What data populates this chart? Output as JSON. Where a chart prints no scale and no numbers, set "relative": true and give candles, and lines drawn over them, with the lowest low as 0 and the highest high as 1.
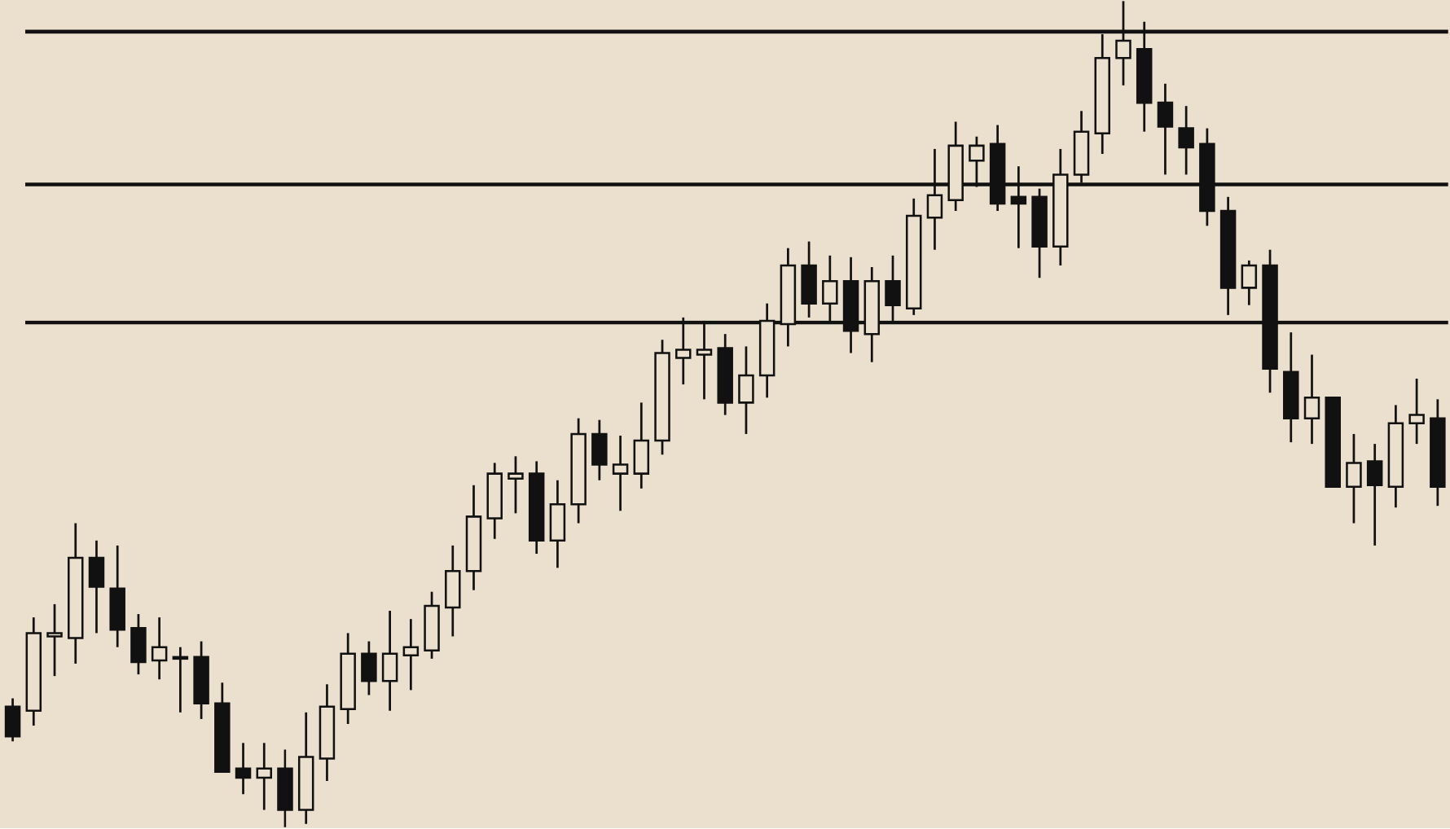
{
  "chart_data": {
    "type": "candlestick",
    "relative": true,
    "color": "#111111",
    "categories": [
      null,
      null,
      null,
      null,
      null,
      null,
      null,
      null,
      null,
      null,
      null,
      null,
      null,
      null,
      null,
      null,
      null,
      null,
      null,
      null,
      null,
      null,
      null,
      null,
      null,
      null,
      null,
      null,
      null,
      null,
      null,
      null,
      null,
      null,
      null,
      null,
      null,
      null,
      null,
      null,
      null,
      null,
      null,
      null,
      null,
      null,
      null,
      null,
      null,
      null,
      null,
      null,
      null,
      null,
      null,
      null,
      null,
      null,
      null,
      null,
      null,
      null,
      null,
      null,
      null,
      null,
      null,
      null,
      null
    ],
    "ohlc": [
      [
        0.146,
        0.156,
        0.104,
        0.11
      ],
      [
        0.141,
        0.254,
        0.123,
        0.235
      ],
      [
        0.231,
        0.27,
        0.183,
        0.235
      ],
      [
        0.229,
        0.368,
        0.198,
        0.326
      ],
      [
        0.326,
        0.347,
        0.235,
        0.291
      ],
      [
        0.289,
        0.341,
        0.218,
        0.239
      ],
      [
        0.241,
        0.258,
        0.185,
        0.2
      ],
      [
        0.202,
        0.254,
        0.179,
        0.218
      ],
      [
        0.204,
        0.218,
        0.139,
        0.206
      ],
      [
        0.206,
        0.225,
        0.131,
        0.15
      ],
      [
        0.15,
        0.175,
        0.067,
        0.067
      ],
      [
        0.071,
        0.102,
        0.04,
        0.06
      ],
      [
        0.06,
        0.102,
        0.021,
        0.071
      ],
      [
        0.071,
        0.094,
        0.0,
        0.021
      ],
      [
        0.021,
        0.139,
        0.004,
        0.085
      ],
      [
        0.083,
        0.173,
        0.056,
        0.146
      ],
      [
        0.143,
        0.235,
        0.125,
        0.21
      ],
      [
        0.21,
        0.225,
        0.16,
        0.177
      ],
      [
        0.177,
        0.262,
        0.141,
        0.21
      ],
      [
        0.208,
        0.252,
        0.166,
        0.218
      ],
      [
        0.214,
        0.285,
        0.204,
        0.268
      ],
      [
        0.266,
        0.341,
        0.231,
        0.31
      ],
      [
        0.31,
        0.414,
        0.287,
        0.376
      ],
      [
        0.374,
        0.441,
        0.349,
        0.428
      ],
      [
        0.422,
        0.449,
        0.38,
        0.428
      ],
      [
        0.428,
        0.443,
        0.331,
        0.347
      ],
      [
        0.347,
        0.42,
        0.314,
        0.391
      ],
      [
        0.391,
        0.495,
        0.368,
        0.476
      ],
      [
        0.476,
        0.493,
        0.42,
        0.439
      ],
      [
        0.428,
        0.474,
        0.383,
        0.439
      ],
      [
        0.428,
        0.514,
        0.41,
        0.468
      ],
      [
        0.468,
        0.59,
        0.451,
        0.574
      ],
      [
        0.568,
        0.617,
        0.536,
        0.578
      ],
      [
        0.572,
        0.613,
        0.518,
        0.578
      ],
      [
        0.58,
        0.597,
        0.499,
        0.514
      ],
      [
        0.514,
        0.582,
        0.476,
        0.547
      ],
      [
        0.547,
        0.634,
        0.52,
        0.613
      ],
      [
        0.609,
        0.701,
        0.582,
        0.68
      ],
      [
        0.68,
        0.709,
        0.617,
        0.634
      ],
      [
        0.634,
        0.692,
        0.609,
        0.661
      ],
      [
        0.661,
        0.69,
        0.574,
        0.601
      ],
      [
        0.597,
        0.678,
        0.563,
        0.661
      ],
      [
        0.661,
        0.692,
        0.613,
        0.632
      ],
      [
        0.628,
        0.761,
        0.62,
        0.74
      ],
      [
        0.738,
        0.821,
        0.699,
        0.765
      ],
      [
        0.759,
        0.854,
        0.746,
        0.825
      ],
      [
        0.807,
        0.836,
        0.775,
        0.825
      ],
      [
        0.827,
        0.85,
        0.746,
        0.755
      ],
      [
        0.763,
        0.8,
        0.701,
        0.755
      ],
      [
        0.763,
        0.773,
        0.665,
        0.703
      ],
      [
        0.703,
        0.821,
        0.68,
        0.79
      ],
      [
        0.79,
        0.867,
        0.78,
        0.842
      ],
      [
        0.84,
        0.96,
        0.815,
        0.931
      ],
      [
        0.931,
        1.0,
        0.898,
        0.952
      ],
      [
        0.942,
        0.975,
        0.842,
        0.877
      ],
      [
        0.877,
        0.9,
        0.79,
        0.848
      ],
      [
        0.846,
        0.873,
        0.79,
        0.823
      ],
      [
        0.827,
        0.846,
        0.728,
        0.746
      ],
      [
        0.746,
        0.763,
        0.62,
        0.653
      ],
      [
        0.653,
        0.686,
        0.632,
        0.68
      ],
      [
        0.68,
        0.699,
        0.526,
        0.555
      ],
      [
        0.551,
        0.599,
        0.466,
        0.495
      ],
      [
        0.495,
        0.572,
        0.464,
        0.52
      ],
      [
        0.52,
        0.52,
        0.412,
        0.412
      ],
      [
        0.412,
        0.476,
        0.368,
        0.441
      ],
      [
        0.443,
        0.464,
        0.341,
        0.414
      ],
      [
        0.412,
        0.511,
        0.387,
        0.489
      ],
      [
        0.489,
        0.543,
        0.464,
        0.499
      ],
      [
        0.495,
        0.518,
        0.389,
        0.412
      ]
    ],
    "ref_lines": [
      {
        "axis": "y",
        "value": 0.963
      },
      {
        "axis": "y",
        "value": 0.778
      },
      {
        "axis": "y",
        "value": 0.611
      }
    ]
  }
}
